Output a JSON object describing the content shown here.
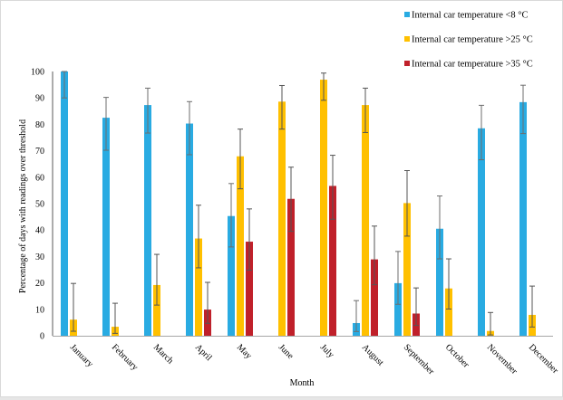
{
  "chart_data": {
    "type": "bar",
    "title": "",
    "xlabel": "Month",
    "ylabel": "Percentage  of  days  with  readings  over  threshold",
    "ylim": [
      0,
      100
    ],
    "yticks": [
      0,
      10,
      20,
      30,
      40,
      50,
      60,
      70,
      80,
      90,
      100
    ],
    "grid": false,
    "legend_position": "top-right",
    "categories": [
      "January",
      "February",
      "March",
      "April",
      "May",
      "June",
      "July",
      "August",
      "September",
      "October",
      "November",
      "December"
    ],
    "series": [
      {
        "name": "Internal car temperature <8 °C",
        "color": "#29abe2",
        "values": [
          100,
          82.5,
          87.3,
          80.3,
          45.3,
          null,
          null,
          4.8,
          19.9,
          40.5,
          78.5,
          88.4
        ],
        "error_low": [
          90,
          70.2,
          76.7,
          68.5,
          33.6,
          null,
          null,
          1.6,
          11.9,
          29.1,
          66.6,
          76.5
        ],
        "error_high": [
          100,
          90.2,
          93.7,
          88.6,
          57.6,
          null,
          null,
          13.3,
          31.9,
          52.9,
          87.2,
          94.8
        ]
      },
      {
        "name": "Internal car temperature >25 °C",
        "color": "#ffc000",
        "values": [
          6.1,
          3.4,
          19.2,
          36.8,
          67.9,
          88.6,
          96.9,
          87.3,
          50.2,
          17.9,
          1.8,
          7.9
        ],
        "error_low": [
          1.7,
          0.9,
          11.6,
          25.7,
          55.6,
          78.2,
          89.1,
          76.9,
          37.7,
          10.1,
          0.3,
          3.3
        ],
        "error_high": [
          19.8,
          12.3,
          30.8,
          49.4,
          78.2,
          94.7,
          99.4,
          93.7,
          62.5,
          29.1,
          8.8,
          18.8
        ]
      },
      {
        "name": "Internal car temperature >35 °C",
        "color": "#c0202a",
        "values": [
          null,
          null,
          null,
          9.9,
          35.6,
          51.8,
          56.7,
          28.9,
          8.4,
          null,
          null,
          null
        ],
        "error_low": [
          null,
          null,
          null,
          4.7,
          24.8,
          39.5,
          44.1,
          19.3,
          3.9,
          null,
          null,
          null
        ],
        "error_high": [
          null,
          null,
          null,
          20.2,
          48.0,
          63.8,
          68.3,
          41.5,
          18.1,
          null,
          null,
          null
        ]
      }
    ]
  }
}
